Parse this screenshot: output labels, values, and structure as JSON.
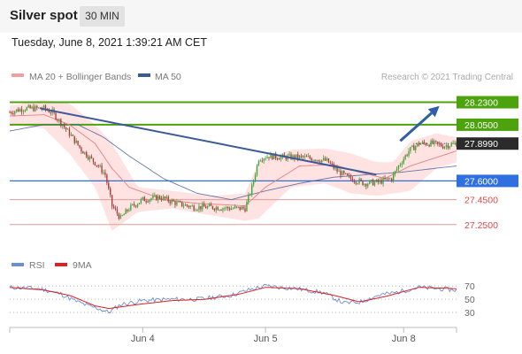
{
  "header": {
    "title": "Silver spot",
    "timeframe": "30 MIN"
  },
  "datetime": "Tuesday, June 8, 2021 1:39:21 AM CET",
  "legend": {
    "ma20_bb": "MA 20 + Bollinger Bands",
    "ma50": "MA 50",
    "copyright": "Research © 2021 Trading Central"
  },
  "rsi_legend": {
    "rsi": "RSI",
    "ma9": "9MA"
  },
  "colors": {
    "resistance": "#4ca30d",
    "support_current": "#2f6fe0",
    "support": "#d84a4a",
    "current": "#333333",
    "trend": "#3d5a98",
    "bollinger": "#ffd8d8",
    "ma20": "#e88080",
    "ma50": "#3d5a98",
    "candle_up": "#3aa635",
    "candle_down": "#a33b3b",
    "rsi": "#6b8ed6",
    "rsi_ma": "#dd2020"
  },
  "chart_data": {
    "type": "candlestick",
    "instrument": "Silver spot",
    "timeframe": "30 MIN",
    "ylim": [
      27.05,
      28.34
    ],
    "x_ticks": [
      "Jun 4",
      "Jun 5",
      "Jun 8"
    ],
    "levels": [
      {
        "label": "28.2300",
        "value": 28.23,
        "kind": "resistance"
      },
      {
        "label": "28.0500",
        "value": 28.05,
        "kind": "resistance"
      },
      {
        "label": "27.8990",
        "value": 27.899,
        "kind": "current"
      },
      {
        "label": "27.6000",
        "value": 27.6,
        "kind": "support_current"
      },
      {
        "label": "27.4500",
        "value": 27.45,
        "kind": "support"
      },
      {
        "label": "27.2500",
        "value": 27.25,
        "kind": "support"
      }
    ],
    "price_path": [
      [
        0,
        28.15
      ],
      [
        8,
        28.18
      ],
      [
        20,
        28.18
      ],
      [
        25,
        28.15
      ],
      [
        35,
        27.98
      ],
      [
        42,
        27.85
      ],
      [
        52,
        27.72
      ],
      [
        56,
        27.65
      ],
      [
        60,
        27.4
      ],
      [
        65,
        27.3
      ],
      [
        70,
        27.38
      ],
      [
        78,
        27.45
      ],
      [
        88,
        27.47
      ],
      [
        98,
        27.42
      ],
      [
        108,
        27.39
      ],
      [
        118,
        27.39
      ],
      [
        130,
        27.38
      ],
      [
        138,
        27.38
      ],
      [
        142,
        27.55
      ],
      [
        146,
        27.78
      ],
      [
        152,
        27.8
      ],
      [
        160,
        27.79
      ],
      [
        170,
        27.79
      ],
      [
        178,
        27.78
      ],
      [
        186,
        27.76
      ],
      [
        192,
        27.68
      ],
      [
        198,
        27.63
      ],
      [
        208,
        27.58
      ],
      [
        216,
        27.59
      ],
      [
        224,
        27.62
      ],
      [
        228,
        27.72
      ],
      [
        234,
        27.84
      ],
      [
        240,
        27.9
      ],
      [
        248,
        27.9
      ],
      [
        254,
        27.88
      ],
      [
        262,
        27.9
      ]
    ],
    "ma20_path": [
      [
        0,
        28.12
      ],
      [
        20,
        28.13
      ],
      [
        35,
        28.05
      ],
      [
        50,
        27.9
      ],
      [
        60,
        27.7
      ],
      [
        70,
        27.55
      ],
      [
        90,
        27.45
      ],
      [
        110,
        27.42
      ],
      [
        138,
        27.4
      ],
      [
        150,
        27.55
      ],
      [
        170,
        27.72
      ],
      [
        190,
        27.73
      ],
      [
        205,
        27.67
      ],
      [
        220,
        27.62
      ],
      [
        235,
        27.72
      ],
      [
        262,
        27.84
      ]
    ],
    "ma50_path": [
      [
        0,
        28.0
      ],
      [
        20,
        28.05
      ],
      [
        40,
        28.05
      ],
      [
        55,
        27.95
      ],
      [
        70,
        27.8
      ],
      [
        90,
        27.62
      ],
      [
        110,
        27.5
      ],
      [
        130,
        27.45
      ],
      [
        150,
        27.52
      ],
      [
        170,
        27.58
      ],
      [
        190,
        27.63
      ],
      [
        210,
        27.65
      ],
      [
        230,
        27.67
      ],
      [
        262,
        27.72
      ]
    ],
    "bb_upper_path": [
      [
        0,
        28.2
      ],
      [
        20,
        28.25
      ],
      [
        35,
        28.22
      ],
      [
        50,
        28.05
      ],
      [
        60,
        27.9
      ],
      [
        75,
        27.55
      ],
      [
        95,
        27.52
      ],
      [
        120,
        27.48
      ],
      [
        138,
        27.5
      ],
      [
        146,
        27.75
      ],
      [
        165,
        27.85
      ],
      [
        185,
        27.86
      ],
      [
        200,
        27.82
      ],
      [
        215,
        27.75
      ],
      [
        225,
        27.75
      ],
      [
        235,
        27.92
      ],
      [
        250,
        27.98
      ],
      [
        262,
        27.95
      ]
    ],
    "bb_lower_path": [
      [
        0,
        28.05
      ],
      [
        20,
        28.02
      ],
      [
        35,
        27.82
      ],
      [
        50,
        27.55
      ],
      [
        60,
        27.2
      ],
      [
        75,
        27.35
      ],
      [
        95,
        27.38
      ],
      [
        120,
        27.32
      ],
      [
        138,
        27.28
      ],
      [
        146,
        27.3
      ],
      [
        165,
        27.55
      ],
      [
        185,
        27.58
      ],
      [
        200,
        27.5
      ],
      [
        215,
        27.48
      ],
      [
        225,
        27.5
      ],
      [
        235,
        27.52
      ],
      [
        250,
        27.7
      ],
      [
        262,
        27.75
      ]
    ],
    "trendline": [
      [
        18,
        28.18
      ],
      [
        215,
        27.65
      ]
    ],
    "projection_arrow": [
      [
        229,
        27.92
      ],
      [
        252,
        28.2
      ]
    ],
    "rsi": {
      "ylim": [
        10,
        85
      ],
      "levels": [
        70,
        50,
        30
      ],
      "rsi_path": [
        [
          0,
          68
        ],
        [
          18,
          66
        ],
        [
          30,
          58
        ],
        [
          38,
          48
        ],
        [
          46,
          40
        ],
        [
          52,
          36
        ],
        [
          58,
          30
        ],
        [
          65,
          42
        ],
        [
          78,
          48
        ],
        [
          95,
          50
        ],
        [
          110,
          50
        ],
        [
          130,
          56
        ],
        [
          140,
          64
        ],
        [
          150,
          70
        ],
        [
          168,
          66
        ],
        [
          184,
          60
        ],
        [
          196,
          44
        ],
        [
          206,
          46
        ],
        [
          216,
          56
        ],
        [
          226,
          60
        ],
        [
          240,
          68
        ],
        [
          262,
          64
        ]
      ],
      "ma9_path": [
        [
          0,
          68
        ],
        [
          20,
          64
        ],
        [
          35,
          56
        ],
        [
          50,
          40
        ],
        [
          58,
          36
        ],
        [
          75,
          42
        ],
        [
          95,
          48
        ],
        [
          115,
          50
        ],
        [
          135,
          58
        ],
        [
          150,
          68
        ],
        [
          170,
          66
        ],
        [
          190,
          56
        ],
        [
          205,
          46
        ],
        [
          220,
          54
        ],
        [
          240,
          68
        ],
        [
          262,
          66
        ]
      ]
    }
  }
}
